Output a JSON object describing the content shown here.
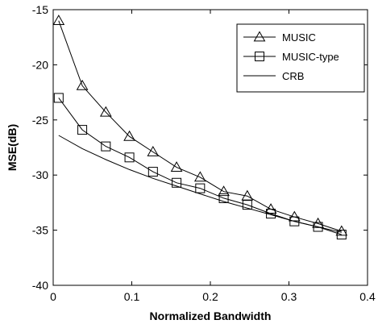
{
  "chart_data": {
    "type": "line",
    "title": "",
    "xlabel": "Normalized Bandwidth",
    "ylabel": "MSE(dB)",
    "xlim": [
      0,
      0.4
    ],
    "ylim": [
      -40,
      -15
    ],
    "xticks": [
      0,
      0.1,
      0.2,
      0.3,
      0.4
    ],
    "xtick_labels": [
      "0",
      "0.1",
      "0.2",
      "0.3",
      "0.4"
    ],
    "yticks": [
      -40,
      -35,
      -30,
      -25,
      -20,
      -15
    ],
    "ytick_labels": [
      "-40",
      "-35",
      "-30",
      "-25",
      "-20",
      "-15"
    ],
    "grid": false,
    "legend_position": "top-right",
    "series": [
      {
        "name": "MUSIC",
        "marker": "triangle",
        "color": "#000000",
        "x": [
          0.007,
          0.037,
          0.067,
          0.097,
          0.127,
          0.157,
          0.187,
          0.217,
          0.247,
          0.277,
          0.307,
          0.337,
          0.367
        ],
        "y": [
          -16.0,
          -21.9,
          -24.3,
          -26.5,
          -27.9,
          -29.3,
          -30.2,
          -31.5,
          -31.9,
          -33.1,
          -33.8,
          -34.4,
          -35.1
        ]
      },
      {
        "name": "MUSIC-type",
        "marker": "square",
        "color": "#000000",
        "x": [
          0.007,
          0.037,
          0.067,
          0.097,
          0.127,
          0.157,
          0.187,
          0.217,
          0.247,
          0.277,
          0.307,
          0.337,
          0.367
        ],
        "y": [
          -23.0,
          -25.9,
          -27.4,
          -28.4,
          -29.7,
          -30.7,
          -31.2,
          -32.1,
          -32.7,
          -33.5,
          -34.2,
          -34.7,
          -35.4
        ]
      },
      {
        "name": "CRB",
        "marker": "none",
        "color": "#000000",
        "x": [
          0.007,
          0.037,
          0.067,
          0.097,
          0.127,
          0.157,
          0.187,
          0.217,
          0.247,
          0.277,
          0.307,
          0.337,
          0.367
        ],
        "y": [
          -26.4,
          -27.6,
          -28.6,
          -29.5,
          -30.3,
          -31.0,
          -31.7,
          -32.4,
          -33.0,
          -33.6,
          -34.2,
          -34.7,
          -35.2
        ]
      }
    ]
  }
}
